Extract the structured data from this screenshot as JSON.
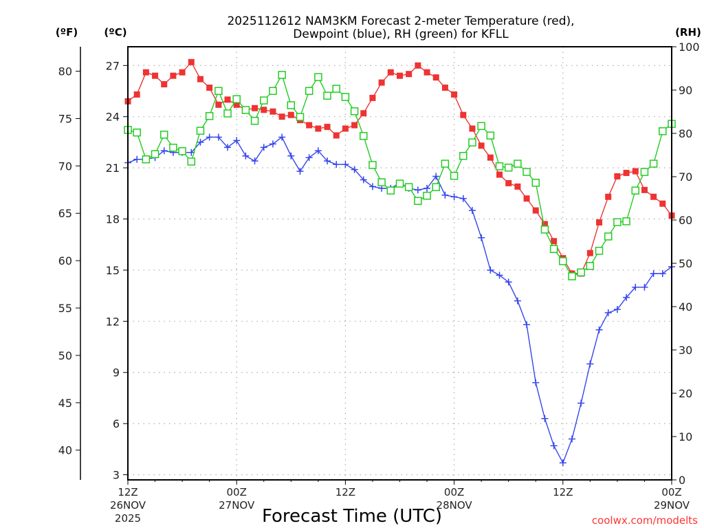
{
  "chart_data": {
    "type": "line",
    "title_line1": "2025112612 NAM3KM Forecast 2-meter Temperature (red),",
    "title_line2": "Dewpoint (blue), RH (green) for KFLL",
    "xlabel": "Forecast Time (UTC)",
    "credit": "coolwx.com/modelts",
    "units": {
      "fahrenheit": "(ºF)",
      "celsius": "(ºC)",
      "rh": "(RH)"
    },
    "x_hours_range": [
      0,
      60
    ],
    "x_ticks": [
      {
        "hour": 0,
        "line1": "12Z",
        "line2": "26NOV",
        "line3": "2025"
      },
      {
        "hour": 12,
        "line1": "00Z",
        "line2": "27NOV",
        "line3": ""
      },
      {
        "hour": 24,
        "line1": "12Z",
        "line2": "",
        "line3": ""
      },
      {
        "hour": 36,
        "line1": "00Z",
        "line2": "28NOV",
        "line3": ""
      },
      {
        "hour": 48,
        "line1": "12Z",
        "line2": "",
        "line3": ""
      },
      {
        "hour": 60,
        "line1": "00Z",
        "line2": "29NOV",
        "line3": ""
      }
    ],
    "celsius_axis": {
      "range": [
        2.7,
        28.1
      ],
      "ticks": [
        3,
        6,
        9,
        12,
        15,
        18,
        21,
        24,
        27
      ]
    },
    "fahrenheit_axis": {
      "ticks": [
        40,
        45,
        50,
        55,
        60,
        65,
        70,
        75,
        80
      ]
    },
    "rh_axis": {
      "range": [
        0,
        100
      ],
      "ticks": [
        0,
        10,
        20,
        30,
        40,
        50,
        60,
        70,
        80,
        90,
        100
      ]
    },
    "grid": true,
    "series": [
      {
        "name": "Temperature",
        "axis": "celsius",
        "color": "#ee3333",
        "marker": "filled-square",
        "values": [
          24.9,
          25.3,
          26.6,
          26.4,
          25.9,
          26.4,
          26.6,
          27.2,
          26.2,
          25.7,
          24.7,
          25.0,
          24.7,
          24.4,
          24.5,
          24.4,
          24.3,
          24.0,
          24.1,
          23.8,
          23.5,
          23.3,
          23.4,
          22.9,
          23.3,
          23.5,
          24.2,
          25.1,
          26.0,
          26.6,
          26.4,
          26.5,
          27.0,
          26.6,
          26.3,
          25.7,
          25.3,
          24.1,
          23.3,
          22.3,
          21.6,
          20.6,
          20.1,
          19.9,
          19.2,
          18.5,
          17.7,
          16.7,
          15.7,
          14.8,
          14.8,
          16.0,
          17.8,
          19.3,
          20.5,
          20.7,
          20.8,
          19.7,
          19.3,
          18.9,
          18.2
        ]
      },
      {
        "name": "Dewpoint",
        "axis": "celsius",
        "color": "#3344ee",
        "marker": "plus",
        "values": [
          21.3,
          21.5,
          21.5,
          21.6,
          22.0,
          21.9,
          21.9,
          21.9,
          22.5,
          22.8,
          22.8,
          22.2,
          22.6,
          21.7,
          21.4,
          22.2,
          22.4,
          22.8,
          21.7,
          20.8,
          21.6,
          22.0,
          21.4,
          21.2,
          21.2,
          20.9,
          20.3,
          19.9,
          19.8,
          19.8,
          20.1,
          19.8,
          19.7,
          19.8,
          20.5,
          19.4,
          19.3,
          19.2,
          18.5,
          16.9,
          15.0,
          14.7,
          14.3,
          13.2,
          11.8,
          8.4,
          6.3,
          4.7,
          3.7,
          5.1,
          7.2,
          9.5,
          11.5,
          12.5,
          12.7,
          13.4,
          14.0,
          14.0,
          14.8,
          14.8,
          15.2
        ]
      },
      {
        "name": "RH",
        "axis": "rh",
        "color": "#22cc22",
        "marker": "open-square",
        "values": [
          80.8,
          80.2,
          74.0,
          75.2,
          79.7,
          76.7,
          75.9,
          73.5,
          80.6,
          84.0,
          89.8,
          84.6,
          87.9,
          85.4,
          82.9,
          87.6,
          89.8,
          93.5,
          86.5,
          83.8,
          89.8,
          93.0,
          88.7,
          90.3,
          88.4,
          85.1,
          79.4,
          72.7,
          68.7,
          66.8,
          68.4,
          67.6,
          64.4,
          65.6,
          67.6,
          73.0,
          70.2,
          74.8,
          77.9,
          81.7,
          79.5,
          72.4,
          72.1,
          73.0,
          71.1,
          68.6,
          57.8,
          53.3,
          50.5,
          47.0,
          47.9,
          49.4,
          52.9,
          56.2,
          59.5,
          59.7,
          66.8,
          71.1,
          73.0,
          80.5,
          82.2
        ]
      }
    ]
  }
}
